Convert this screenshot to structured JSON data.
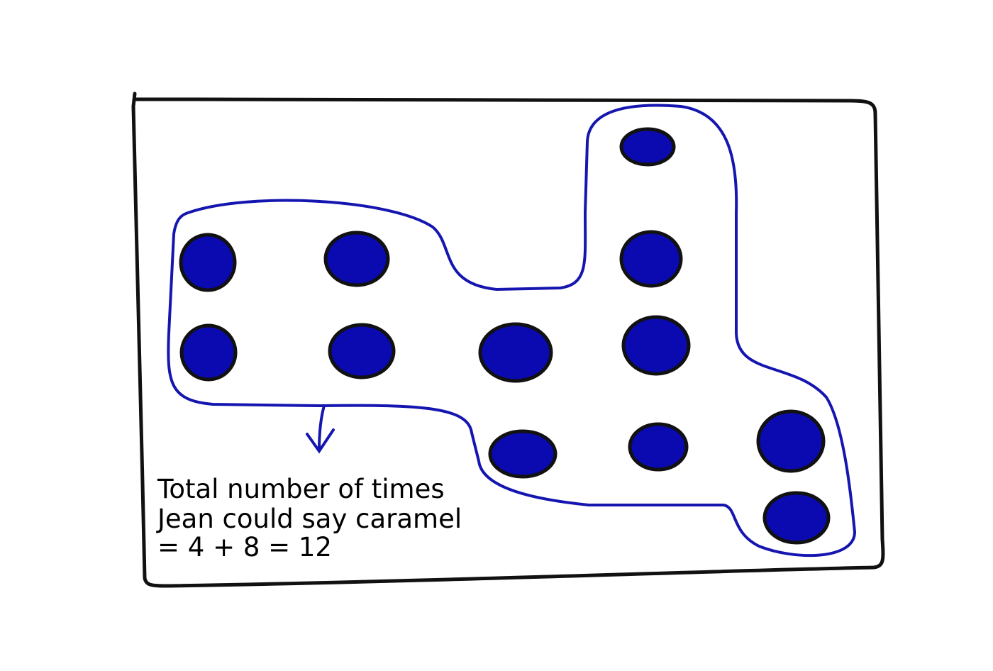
{
  "note": {
    "lines": [
      "Total number of times",
      "Jean could say caramel",
      "= 4 + 8 = 12"
    ]
  }
}
